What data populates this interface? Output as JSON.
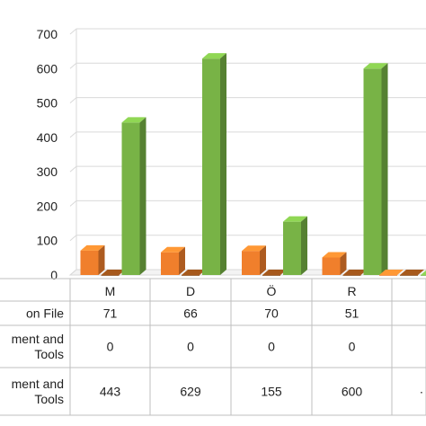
{
  "chart_data": {
    "type": "bar",
    "three_d": true,
    "categories": [
      "M",
      "D",
      "Ö",
      "R",
      ""
    ],
    "ylim": [
      0,
      700
    ],
    "yticks": [
      0,
      100,
      200,
      300,
      400,
      500,
      600,
      700
    ],
    "grid": true,
    "series": [
      {
        "name": "on File",
        "name_lines": [
          "on File"
        ],
        "color": "#f07f2c",
        "values": [
          71,
          66,
          70,
          51,
          0
        ],
        "labels": [
          "71",
          "66",
          "70",
          "51",
          ""
        ]
      },
      {
        "name": "ment and Tools",
        "name_lines": [
          "ment and",
          "Tools"
        ],
        "color": "#8b4a17",
        "values": [
          0,
          0,
          0,
          0,
          0
        ],
        "labels": [
          "0",
          "0",
          "0",
          "0",
          ""
        ]
      },
      {
        "name": "ment and Tools",
        "name_lines": [
          "ment and",
          "Tools"
        ],
        "color": "#78b346",
        "values": [
          443,
          629,
          155,
          600,
          0
        ],
        "labels": [
          "443",
          "629",
          "155",
          "600",
          "·"
        ]
      }
    ]
  }
}
